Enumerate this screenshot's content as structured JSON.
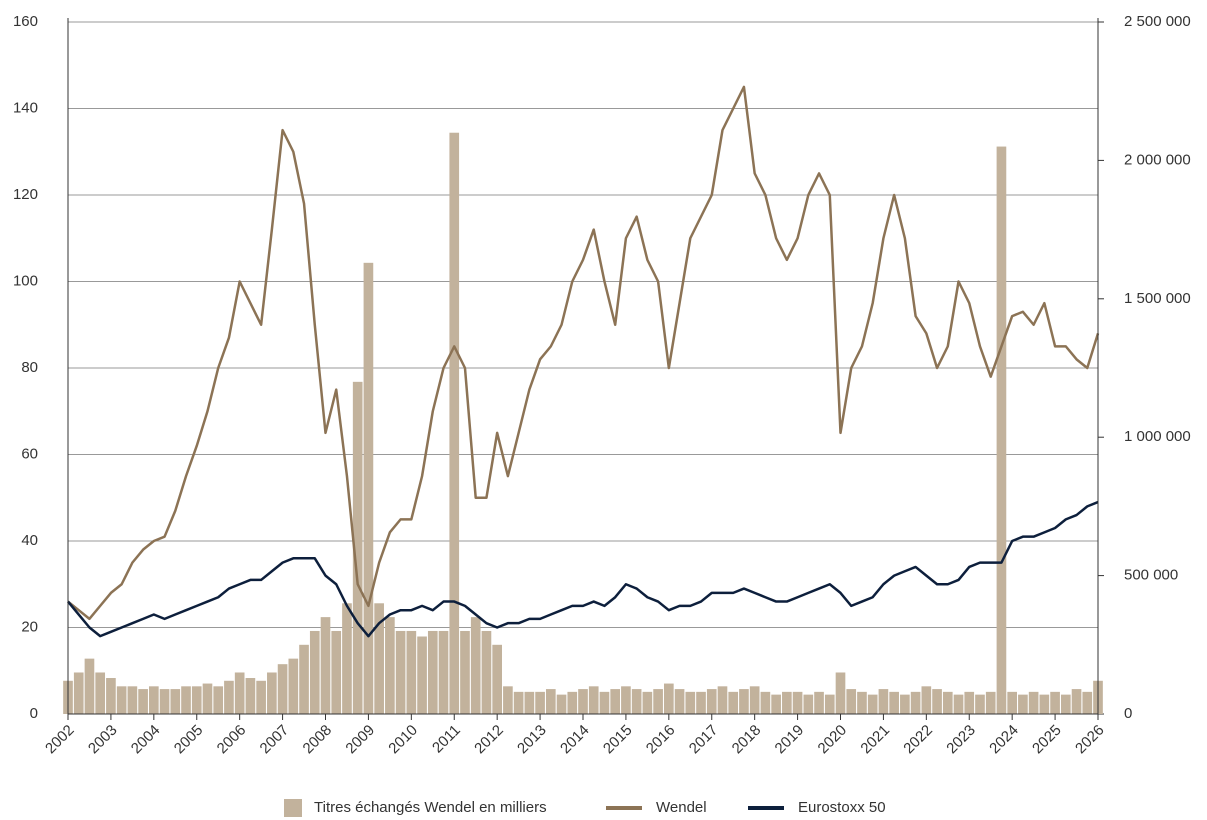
{
  "chart_data": {
    "type": "line",
    "x": [
      2002,
      2002.25,
      2002.5,
      2002.75,
      2003,
      2003.25,
      2003.5,
      2003.75,
      2004,
      2004.25,
      2004.5,
      2004.75,
      2005,
      2005.25,
      2005.5,
      2005.75,
      2006,
      2006.25,
      2006.5,
      2006.75,
      2007,
      2007.25,
      2007.5,
      2007.75,
      2008,
      2008.25,
      2008.5,
      2008.75,
      2009,
      2009.25,
      2009.5,
      2009.75,
      2010,
      2010.25,
      2010.5,
      2010.75,
      2011,
      2011.25,
      2011.5,
      2011.75,
      2012,
      2012.25,
      2012.5,
      2012.75,
      2013,
      2013.25,
      2013.5,
      2013.75,
      2014,
      2014.25,
      2014.5,
      2014.75,
      2015,
      2015.25,
      2015.5,
      2015.75,
      2016,
      2016.25,
      2016.5,
      2016.75,
      2017,
      2017.25,
      2017.5,
      2017.75,
      2018,
      2018.25,
      2018.5,
      2018.75,
      2019,
      2019.25,
      2019.5,
      2019.75,
      2020,
      2020.25,
      2020.5,
      2020.75,
      2021,
      2021.25,
      2021.5,
      2021.75,
      2022,
      2022.25,
      2022.5,
      2022.75,
      2023,
      2023.25,
      2023.5,
      2023.75,
      2024,
      2024.25,
      2024.5,
      2024.75,
      2025,
      2025.25,
      2025.5,
      2025.75,
      2026
    ],
    "series": [
      {
        "name": "Titres échangés Wendel en milliers",
        "color": "#c2b29c",
        "kind": "bar",
        "axis": "y2",
        "values": [
          120000,
          150000,
          200000,
          150000,
          130000,
          100000,
          100000,
          90000,
          100000,
          90000,
          90000,
          100000,
          100000,
          110000,
          100000,
          120000,
          150000,
          130000,
          120000,
          150000,
          180000,
          200000,
          250000,
          300000,
          350000,
          300000,
          400000,
          1200000,
          1630000,
          400000,
          350000,
          300000,
          300000,
          280000,
          300000,
          300000,
          2100000,
          300000,
          350000,
          300000,
          250000,
          100000,
          80000,
          80000,
          80000,
          90000,
          70000,
          80000,
          90000,
          100000,
          80000,
          90000,
          100000,
          90000,
          80000,
          90000,
          110000,
          90000,
          80000,
          80000,
          90000,
          100000,
          80000,
          90000,
          100000,
          80000,
          70000,
          80000,
          80000,
          70000,
          80000,
          70000,
          150000,
          90000,
          80000,
          70000,
          90000,
          80000,
          70000,
          80000,
          100000,
          90000,
          80000,
          70000,
          80000,
          70000,
          80000,
          2050000,
          80000,
          70000,
          80000,
          70000,
          80000,
          70000,
          90000,
          80000,
          120000
        ]
      },
      {
        "name": "Wendel",
        "color": "#8c7355",
        "kind": "line",
        "values": [
          26,
          24,
          22,
          25,
          28,
          30,
          35,
          38,
          40,
          41,
          47,
          55,
          62,
          70,
          80,
          87,
          100,
          95,
          90,
          112,
          135,
          130,
          118,
          90,
          65,
          75,
          55,
          30,
          25,
          35,
          42,
          45,
          45,
          55,
          70,
          80,
          85,
          80,
          50,
          50,
          65,
          55,
          65,
          75,
          82,
          85,
          90,
          100,
          105,
          112,
          100,
          90,
          110,
          115,
          105,
          100,
          80,
          95,
          110,
          115,
          120,
          135,
          140,
          145,
          125,
          120,
          110,
          105,
          110,
          120,
          125,
          120,
          65,
          80,
          85,
          95,
          110,
          120,
          110,
          92,
          88,
          80,
          85,
          100,
          95,
          85,
          78,
          85,
          92,
          93,
          90,
          95,
          85,
          85,
          82,
          80,
          88
        ]
      },
      {
        "name": "Eurostoxx 50",
        "color": "#0d1f3c",
        "kind": "line",
        "values": [
          26,
          23,
          20,
          18,
          19,
          20,
          21,
          22,
          23,
          22,
          23,
          24,
          25,
          26,
          27,
          29,
          30,
          31,
          31,
          33,
          35,
          36,
          36,
          36,
          32,
          30,
          25,
          21,
          18,
          21,
          23,
          24,
          24,
          25,
          24,
          26,
          26,
          25,
          23,
          21,
          20,
          21,
          21,
          22,
          22,
          23,
          24,
          25,
          25,
          26,
          25,
          27,
          30,
          29,
          27,
          26,
          24,
          25,
          25,
          26,
          28,
          28,
          28,
          29,
          28,
          27,
          26,
          26,
          27,
          28,
          29,
          30,
          28,
          25,
          26,
          27,
          30,
          32,
          33,
          34,
          32,
          30,
          30,
          31,
          34,
          35,
          35,
          35,
          40,
          41,
          41,
          42,
          43,
          45,
          46,
          48,
          49
        ]
      }
    ],
    "xlim": [
      2002,
      2026
    ],
    "xticks": [
      2002,
      2003,
      2004,
      2005,
      2006,
      2007,
      2008,
      2009,
      2010,
      2011,
      2012,
      2013,
      2014,
      2015,
      2016,
      2017,
      2018,
      2019,
      2020,
      2021,
      2022,
      2023,
      2024,
      2025,
      2026
    ],
    "ylim": [
      0,
      160
    ],
    "yticks": [
      0,
      20,
      40,
      60,
      80,
      100,
      120,
      140,
      160
    ],
    "y2lim": [
      0,
      2500000
    ],
    "y2ticks": [
      0,
      {
        "value": 500000,
        "label": "500 000"
      },
      {
        "value": 1000000,
        "label": "1 000 000"
      },
      {
        "value": 1500000,
        "label": "1 500 000"
      },
      {
        "value": 2000000,
        "label": "2 000 000"
      },
      {
        "value": 2500000,
        "label": "2 500 000"
      }
    ],
    "grid": true,
    "legend": "bottom"
  }
}
